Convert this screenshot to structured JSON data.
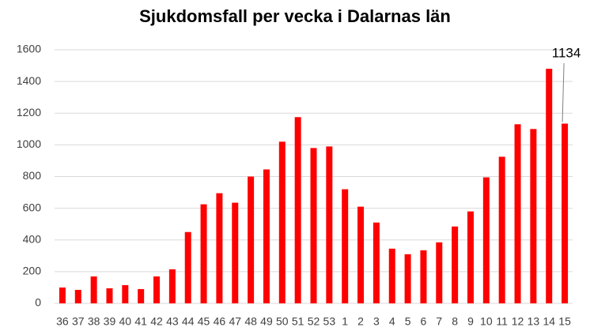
{
  "chart_data": {
    "type": "bar",
    "title": "Sjukdomsfall per vecka i Dalarnas län",
    "categories": [
      "36",
      "37",
      "38",
      "39",
      "40",
      "41",
      "42",
      "43",
      "44",
      "45",
      "46",
      "47",
      "48",
      "49",
      "50",
      "51",
      "52",
      "53",
      "1",
      "2",
      "3",
      "4",
      "5",
      "6",
      "7",
      "8",
      "9",
      "10",
      "11",
      "12",
      "13",
      "14",
      "15"
    ],
    "values": [
      100,
      85,
      170,
      95,
      115,
      90,
      170,
      215,
      450,
      625,
      695,
      635,
      800,
      845,
      1020,
      1175,
      980,
      990,
      720,
      610,
      510,
      345,
      310,
      335,
      385,
      485,
      580,
      795,
      925,
      1130,
      1100,
      1480,
      1134
    ],
    "color": "#ff0000",
    "ylim": [
      0,
      1600
    ],
    "yticks": [
      0,
      200,
      400,
      600,
      800,
      1000,
      1200,
      1400,
      1600
    ],
    "grid": true
  }
}
